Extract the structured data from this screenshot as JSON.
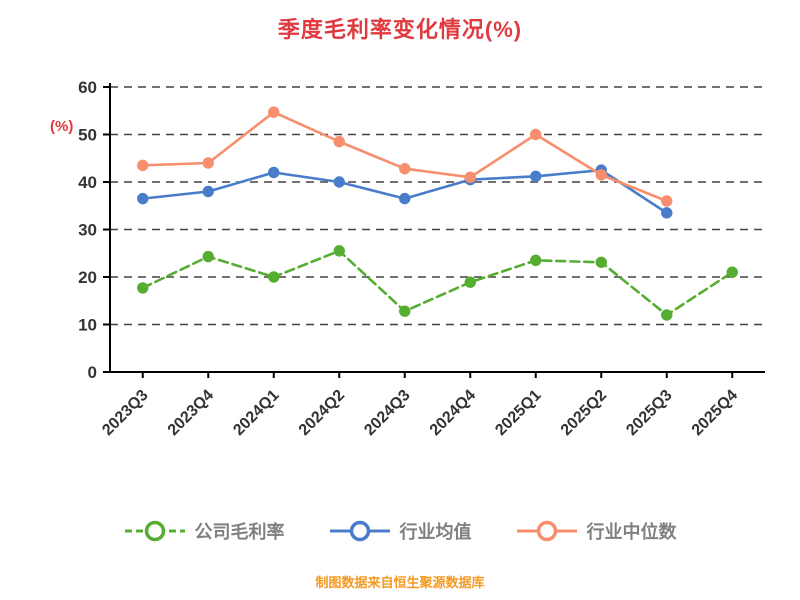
{
  "page": {
    "footer_note": "制图数据来自恒生聚源数据库"
  },
  "colors": {
    "background": "#ffffff",
    "title": "#e0393f",
    "ylabel": "#e0393f",
    "axis": "#000000",
    "grid": "#444444",
    "tick_label": "#333333",
    "legend_label": "#808080",
    "footer": "#f59a23"
  },
  "chart_data": {
    "type": "line",
    "title": "季度毛利率变化情况(%)",
    "xlabel": "",
    "ylabel": "(%)",
    "ylim": [
      0,
      60
    ],
    "yticks": [
      0,
      10,
      20,
      30,
      40,
      50,
      60
    ],
    "grid": "horizontal-dashed",
    "legend_position": "bottom",
    "categories": [
      "2023Q3",
      "2023Q4",
      "2024Q1",
      "2024Q2",
      "2024Q3",
      "2024Q4",
      "2025Q1",
      "2025Q2",
      "2025Q3",
      "2025Q4"
    ],
    "series": [
      {
        "name": "公司毛利率",
        "color": "#55ad32",
        "line_style": "dashed",
        "values": [
          17.7,
          24.3,
          20.0,
          25.5,
          12.8,
          18.9,
          23.5,
          23.1,
          12.0,
          21.0
        ]
      },
      {
        "name": "行业均值",
        "color": "#4a7dc9",
        "line_style": "solid",
        "values": [
          36.5,
          38.0,
          42.0,
          40.0,
          36.5,
          40.5,
          41.2,
          42.5,
          33.5,
          null
        ]
      },
      {
        "name": "行业中位数",
        "color": "#f78e6d",
        "line_style": "solid",
        "values": [
          43.5,
          44.0,
          54.7,
          48.5,
          42.8,
          41.0,
          50.0,
          41.5,
          36.0,
          null
        ]
      }
    ]
  }
}
